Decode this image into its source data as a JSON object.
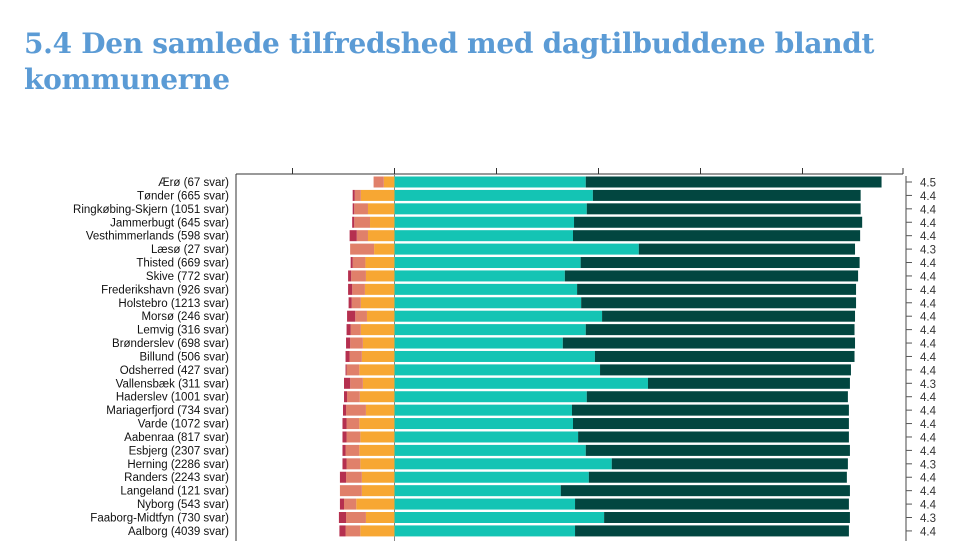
{
  "slide": {
    "title": "5.4 Den samlede tilfredshed med dagtilbuddene blandt kommunerne"
  },
  "colors": {
    "title": "#5b9bd5",
    "very_dissatisfied": "#b5304f",
    "dissatisfied": "#e0806a",
    "neutral": "#f7a733",
    "satisfied": "#14c4b4",
    "very_satisfied": "#024640"
  },
  "chart_data": {
    "type": "bar",
    "orientation": "horizontal",
    "stacked": "diverging",
    "title": "",
    "xlabel": "",
    "ylabel": "",
    "xlim": [
      -20,
      100
    ],
    "xticks": [
      -20,
      0,
      20,
      40,
      60,
      80,
      100
    ],
    "tick_labels_shown": false,
    "grid": false,
    "legend": "none",
    "segments": [
      "very_dissatisfied",
      "dissatisfied",
      "neutral",
      "satisfied",
      "very_satisfied"
    ],
    "categories": [
      "Ærø (67 svar)",
      "Tønder (665 svar)",
      "Ringkøbing-Skjern (1051 svar)",
      "Jammerbugt (645 svar)",
      "Vesthimmerlands (598 svar)",
      "Læsø (27 svar)",
      "Thisted (669 svar)",
      "Skive (772 svar)",
      "Frederikshavn (926 svar)",
      "Holstebro (1213 svar)",
      "Morsø (246 svar)",
      "Lemvig (316 svar)",
      "Brønderslev (698 svar)",
      "Billund (506 svar)",
      "Odsherred (427 svar)",
      "Vallensbæk (311 svar)",
      "Haderslev (1001 svar)",
      "Mariagerfjord (734 svar)",
      "Varde (1072 svar)",
      "Aabenraa (817 svar)",
      "Esbjerg (2307 svar)",
      "Herning (2286 svar)",
      "Randers (2243 svar)",
      "Langeland (121 svar)",
      "Nyborg (543 svar)",
      "Faaborg-Midtfyn (730 svar)",
      "Aalborg (4039 svar)"
    ],
    "series": [
      {
        "name": "very_dissatisfied",
        "values": [
          0.0,
          0.4,
          0.3,
          0.4,
          1.4,
          0.0,
          0.4,
          0.6,
          0.8,
          0.6,
          1.6,
          0.8,
          0.8,
          0.8,
          0.2,
          1.2,
          0.6,
          0.6,
          0.8,
          0.8,
          0.6,
          0.8,
          1.2,
          0.0,
          0.8,
          1.4,
          1.2
        ]
      },
      {
        "name": "dissatisfied",
        "values": [
          2.0,
          1.2,
          2.7,
          3.1,
          2.2,
          4.7,
          2.5,
          2.9,
          2.5,
          1.8,
          2.3,
          2.0,
          2.5,
          2.4,
          2.5,
          2.5,
          2.5,
          3.9,
          2.5,
          2.7,
          2.7,
          2.7,
          3.1,
          4.3,
          2.4,
          3.9,
          2.9
        ]
      },
      {
        "name": "neutral",
        "values": [
          2.1,
          6.6,
          5.2,
          4.8,
          5.2,
          4.0,
          5.7,
          5.6,
          5.8,
          6.6,
          5.4,
          6.6,
          6.2,
          6.4,
          6.9,
          6.2,
          6.8,
          5.6,
          6.9,
          6.7,
          6.9,
          6.7,
          6.4,
          6.4,
          7.5,
          5.6,
          6.7
        ]
      },
      {
        "name": "satisfied",
        "values": [
          37.5,
          38.9,
          37.7,
          35.2,
          35.0,
          47.9,
          36.5,
          33.4,
          35.8,
          36.6,
          40.7,
          37.5,
          33.0,
          39.3,
          40.3,
          49.7,
          37.7,
          34.8,
          35.0,
          36.0,
          37.5,
          42.6,
          38.1,
          32.6,
          35.4,
          41.1,
          35.4
        ]
      },
      {
        "name": "very_satisfied",
        "values": [
          58.0,
          52.5,
          53.7,
          56.5,
          56.3,
          42.4,
          54.7,
          57.5,
          54.7,
          53.9,
          49.6,
          52.7,
          57.3,
          50.9,
          49.2,
          39.6,
          51.2,
          54.3,
          54.1,
          53.1,
          51.8,
          46.3,
          50.6,
          56.7,
          53.7,
          48.2,
          53.7
        ]
      }
    ],
    "mean_scores": [
      "4.5",
      "4.4",
      "4.4",
      "4.4",
      "4.4",
      "4.3",
      "4.4",
      "4.4",
      "4.4",
      "4.4",
      "4.4",
      "4.4",
      "4.4",
      "4.4",
      "4.4",
      "4.3",
      "4.4",
      "4.4",
      "4.4",
      "4.4",
      "4.4",
      "4.3",
      "4.4",
      "4.4",
      "4.4",
      "4.3",
      "4.4"
    ]
  }
}
